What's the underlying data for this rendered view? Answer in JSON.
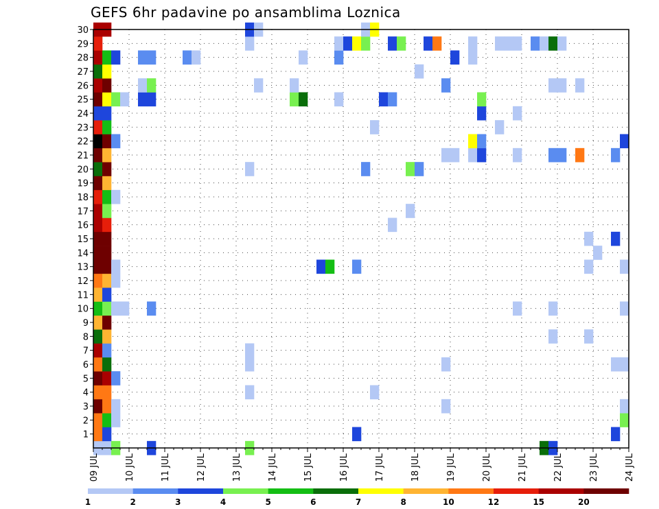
{
  "title": "GEFS 6hr padavine po ansamblima Loznica",
  "chart_data": {
    "type": "heatmap",
    "title": "GEFS 6hr padavine po ansamblima Loznica",
    "x_labels": [
      "09 JUL",
      "10 JUL",
      "11 JUL",
      "12 JUL",
      "13 JUL",
      "14 JUL",
      "15 JUL",
      "16 JUL",
      "17 JUL",
      "18 JUL",
      "19 JUL",
      "20 JUL",
      "21 JUL",
      "22 JUL",
      "23 JUL",
      "24 JUL"
    ],
    "xlim": [
      0,
      60
    ],
    "y_labels": [
      "1",
      "2",
      "3",
      "4",
      "5",
      "6",
      "7",
      "8",
      "9",
      "10",
      "11",
      "12",
      "13",
      "14",
      "15",
      "16",
      "17",
      "18",
      "19",
      "20",
      "21",
      "22",
      "23",
      "24",
      "25",
      "26",
      "27",
      "28",
      "29",
      "30"
    ],
    "ylim": [
      0,
      30
    ],
    "grid": true,
    "colorbar": {
      "labels": [
        "1",
        "2",
        "3",
        "4",
        "5",
        "6",
        "7",
        "8",
        "10",
        "12",
        "15",
        "20"
      ],
      "colors": [
        "#b4c8f5",
        "#5a8cf0",
        "#1e46dc",
        "#78f050",
        "#14be14",
        "#0a6e0a",
        "#ffff00",
        "#ffb432",
        "#ff7814",
        "#e61e0a",
        "#aa0000",
        "#6e0000"
      ]
    },
    "cells": [
      [
        0,
        0,
        1
      ],
      [
        1,
        0,
        1
      ],
      [
        2,
        0,
        4
      ],
      [
        6,
        0,
        3
      ],
      [
        17,
        0,
        4
      ],
      [
        50,
        0,
        6
      ],
      [
        51,
        0,
        3
      ],
      [
        0,
        1,
        9
      ],
      [
        1,
        1,
        3
      ],
      [
        29,
        1,
        3
      ],
      [
        58,
        1,
        3
      ],
      [
        0,
        2,
        9
      ],
      [
        1,
        2,
        5
      ],
      [
        2,
        2,
        1
      ],
      [
        59,
        2,
        4
      ],
      [
        0,
        3,
        12
      ],
      [
        1,
        3,
        9
      ],
      [
        2,
        3,
        1
      ],
      [
        39,
        3,
        1
      ],
      [
        59,
        3,
        1
      ],
      [
        0,
        4,
        9
      ],
      [
        1,
        4,
        9
      ],
      [
        17,
        4,
        1
      ],
      [
        31,
        4,
        1
      ],
      [
        0,
        5,
        12
      ],
      [
        1,
        5,
        11
      ],
      [
        2,
        5,
        2
      ],
      [
        0,
        6,
        9
      ],
      [
        1,
        6,
        6
      ],
      [
        17,
        6,
        1
      ],
      [
        39,
        6,
        1
      ],
      [
        58,
        6,
        1
      ],
      [
        59,
        6,
        1
      ],
      [
        0,
        7,
        11
      ],
      [
        1,
        7,
        2
      ],
      [
        17,
        7,
        1
      ],
      [
        0,
        8,
        6
      ],
      [
        1,
        8,
        8
      ],
      [
        51,
        8,
        1
      ],
      [
        55,
        8,
        1
      ],
      [
        0,
        9,
        8
      ],
      [
        1,
        9,
        12
      ],
      [
        0,
        10,
        5
      ],
      [
        1,
        10,
        4
      ],
      [
        2,
        10,
        1
      ],
      [
        3,
        10,
        1
      ],
      [
        6,
        10,
        2
      ],
      [
        47,
        10,
        1
      ],
      [
        51,
        10,
        1
      ],
      [
        59,
        10,
        1
      ],
      [
        0,
        11,
        8
      ],
      [
        1,
        11,
        3
      ],
      [
        0,
        12,
        9
      ],
      [
        1,
        12,
        8
      ],
      [
        2,
        12,
        1
      ],
      [
        0,
        13,
        12
      ],
      [
        1,
        13,
        12
      ],
      [
        2,
        13,
        1
      ],
      [
        25,
        13,
        3
      ],
      [
        26,
        13,
        5
      ],
      [
        29,
        13,
        2
      ],
      [
        55,
        13,
        1
      ],
      [
        59,
        13,
        1
      ],
      [
        0,
        14,
        12
      ],
      [
        1,
        14,
        12
      ],
      [
        56,
        14,
        1
      ],
      [
        0,
        15,
        12
      ],
      [
        1,
        15,
        12
      ],
      [
        55,
        15,
        1
      ],
      [
        58,
        15,
        3
      ],
      [
        0,
        16,
        11
      ],
      [
        1,
        16,
        10
      ],
      [
        33,
        16,
        1
      ],
      [
        0,
        17,
        11
      ],
      [
        1,
        17,
        4
      ],
      [
        35,
        17,
        1
      ],
      [
        0,
        18,
        10
      ],
      [
        1,
        18,
        5
      ],
      [
        2,
        18,
        1
      ],
      [
        0,
        19,
        12
      ],
      [
        1,
        19,
        8
      ],
      [
        0,
        20,
        6
      ],
      [
        1,
        20,
        12
      ],
      [
        17,
        20,
        1
      ],
      [
        30,
        20,
        2
      ],
      [
        35,
        20,
        4
      ],
      [
        36,
        20,
        2
      ],
      [
        0,
        21,
        12
      ],
      [
        1,
        21,
        8
      ],
      [
        39,
        21,
        1
      ],
      [
        40,
        21,
        1
      ],
      [
        42,
        21,
        1
      ],
      [
        43,
        21,
        3
      ],
      [
        47,
        21,
        1
      ],
      [
        51,
        21,
        2
      ],
      [
        52,
        21,
        2
      ],
      [
        54,
        21,
        9
      ],
      [
        58,
        21,
        2
      ],
      [
        0,
        22,
        13
      ],
      [
        1,
        22,
        12
      ],
      [
        2,
        22,
        2
      ],
      [
        42,
        22,
        7
      ],
      [
        43,
        22,
        2
      ],
      [
        59,
        22,
        3
      ],
      [
        0,
        23,
        10
      ],
      [
        1,
        23,
        5
      ],
      [
        31,
        23,
        1
      ],
      [
        45,
        23,
        1
      ],
      [
        0,
        24,
        3
      ],
      [
        1,
        24,
        3
      ],
      [
        43,
        24,
        3
      ],
      [
        47,
        24,
        1
      ],
      [
        0,
        25,
        12
      ],
      [
        1,
        25,
        7
      ],
      [
        2,
        25,
        4
      ],
      [
        3,
        25,
        1
      ],
      [
        5,
        25,
        3
      ],
      [
        6,
        25,
        3
      ],
      [
        22,
        25,
        4
      ],
      [
        23,
        25,
        6
      ],
      [
        27,
        25,
        1
      ],
      [
        32,
        25,
        3
      ],
      [
        33,
        25,
        2
      ],
      [
        43,
        25,
        4
      ],
      [
        0,
        26,
        11
      ],
      [
        1,
        26,
        12
      ],
      [
        5,
        26,
        1
      ],
      [
        6,
        26,
        4
      ],
      [
        18,
        26,
        1
      ],
      [
        22,
        26,
        1
      ],
      [
        39,
        26,
        2
      ],
      [
        51,
        26,
        1
      ],
      [
        52,
        26,
        1
      ],
      [
        54,
        26,
        1
      ],
      [
        0,
        27,
        6
      ],
      [
        1,
        27,
        7
      ],
      [
        36,
        27,
        1
      ],
      [
        0,
        28,
        11
      ],
      [
        1,
        28,
        5
      ],
      [
        2,
        28,
        3
      ],
      [
        5,
        28,
        2
      ],
      [
        6,
        28,
        2
      ],
      [
        10,
        28,
        2
      ],
      [
        11,
        28,
        1
      ],
      [
        23,
        28,
        1
      ],
      [
        27,
        28,
        2
      ],
      [
        40,
        28,
        3
      ],
      [
        42,
        28,
        1
      ],
      [
        0,
        29,
        10
      ],
      [
        17,
        29,
        1
      ],
      [
        27,
        29,
        1
      ],
      [
        28,
        29,
        3
      ],
      [
        29,
        29,
        7
      ],
      [
        30,
        29,
        4
      ],
      [
        33,
        29,
        3
      ],
      [
        34,
        29,
        4
      ],
      [
        37,
        29,
        3
      ],
      [
        38,
        29,
        9
      ],
      [
        42,
        29,
        1
      ],
      [
        45,
        29,
        1
      ],
      [
        46,
        29,
        1
      ],
      [
        47,
        29,
        1
      ],
      [
        49,
        29,
        2
      ],
      [
        50,
        29,
        1
      ],
      [
        51,
        29,
        6
      ],
      [
        52,
        29,
        1
      ],
      [
        0,
        30,
        11
      ],
      [
        1,
        30,
        11
      ],
      [
        17,
        30,
        3
      ],
      [
        18,
        30,
        1
      ],
      [
        30,
        30,
        1
      ],
      [
        31,
        30,
        7
      ]
    ]
  }
}
